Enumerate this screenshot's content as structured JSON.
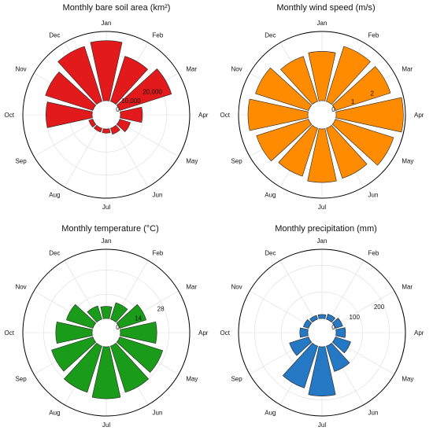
{
  "months": [
    "Jan",
    "Feb",
    "Mar",
    "Apr",
    "May",
    "Jun",
    "Jul",
    "Aug",
    "Sep",
    "Oct",
    "Nov",
    "Dec"
  ],
  "chart_data": [
    {
      "type": "bar",
      "polar": true,
      "title": "Monthly bare soil area (km²)",
      "categories": [
        "Jan",
        "Feb",
        "Mar",
        "Apr",
        "May",
        "Jun",
        "Jul",
        "Aug",
        "Sep",
        "Oct",
        "Nov",
        "Dec"
      ],
      "values": [
        26000,
        20500,
        23500,
        9500,
        4800,
        2700,
        1800,
        1700,
        1800,
        20000,
        21500,
        25000
      ],
      "rmax": 30000,
      "rticks": [
        0,
        10000,
        20000
      ],
      "rtick_labels": [
        "0",
        "10,000",
        "20,000"
      ],
      "color": "#e31a1c",
      "grid": true
    },
    {
      "type": "bar",
      "polar": true,
      "title": "Monthly wind speed (m/s)",
      "categories": [
        "Jan",
        "Feb",
        "Mar",
        "Apr",
        "May",
        "Jun",
        "Jul",
        "Aug",
        "Sep",
        "Oct",
        "Nov",
        "Dec"
      ],
      "values": [
        2.35,
        2.75,
        2.75,
        3.2,
        2.9,
        2.5,
        2.55,
        2.4,
        2.6,
        2.85,
        2.65,
        2.25
      ],
      "rmax": 3.3,
      "rticks": [
        0,
        1,
        2
      ],
      "rtick_labels": [
        "0",
        "1",
        "2"
      ],
      "color": "#ff8c00",
      "grid": true
    },
    {
      "type": "bar",
      "polar": true,
      "title": "Monthly temperature (°C)",
      "categories": [
        "Jan",
        "Feb",
        "Mar",
        "Apr",
        "May",
        "Jun",
        "Jul",
        "Aug",
        "Sep",
        "Oct",
        "Nov",
        "Dec"
      ],
      "values": [
        7,
        10,
        16,
        21,
        26,
        28,
        30,
        28,
        25,
        21,
        16,
        8
      ],
      "rmax": 40,
      "rticks": [
        0,
        14,
        28
      ],
      "rtick_labels": [
        "0",
        "14",
        "28"
      ],
      "color": "#1a9c1a",
      "grid": true
    },
    {
      "type": "bar",
      "polar": true,
      "title": "Monthly precipitation (mm)",
      "categories": [
        "Jan",
        "Feb",
        "Mar",
        "Apr",
        "May",
        "Jun",
        "Jul",
        "Aug",
        "Sep",
        "Oct",
        "Nov",
        "Dec"
      ],
      "values": [
        15,
        20,
        28,
        35,
        60,
        100,
        185,
        165,
        75,
        30,
        20,
        15
      ],
      "rmax": 260,
      "rticks": [
        0,
        100,
        200
      ],
      "rtick_labels": [
        "0",
        "100",
        "200"
      ],
      "color": "#2478c4",
      "grid": true
    }
  ]
}
